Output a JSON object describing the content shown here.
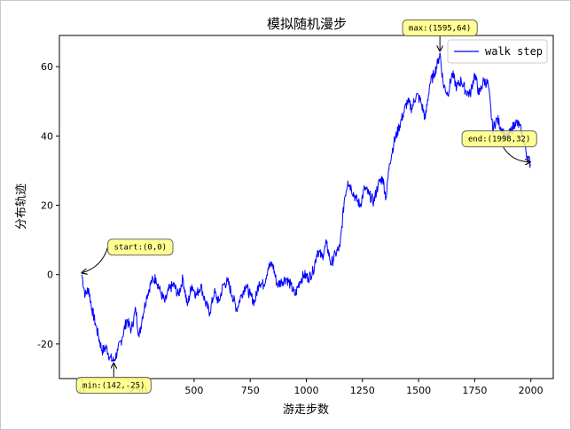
{
  "chart_data": {
    "type": "line",
    "title": "模拟随机漫步",
    "xlabel": "游走步数",
    "ylabel": "分布轨迹",
    "xlim": [
      -100,
      2100
    ],
    "ylim": [
      -30,
      69
    ],
    "xticks": [
      0,
      250,
      500,
      750,
      1000,
      1250,
      1500,
      1750,
      2000
    ],
    "yticks": [
      -20,
      0,
      20,
      40,
      60
    ],
    "grid": false,
    "legend_position": "top-right",
    "colors": {
      "line": "#0000ff",
      "annotation_fill": "#ffff7f",
      "annotation_edge": "#666666"
    },
    "series": [
      {
        "name": "walk step",
        "x": [
          0,
          15,
          30,
          45,
          60,
          75,
          90,
          110,
          125,
          142,
          160,
          180,
          200,
          220,
          240,
          255,
          270,
          290,
          310,
          330,
          350,
          370,
          390,
          410,
          430,
          450,
          470,
          490,
          510,
          530,
          550,
          570,
          590,
          610,
          630,
          650,
          670,
          690,
          710,
          730,
          750,
          770,
          790,
          810,
          830,
          850,
          870,
          890,
          910,
          930,
          950,
          970,
          990,
          1010,
          1030,
          1050,
          1070,
          1090,
          1110,
          1130,
          1150,
          1170,
          1185,
          1200,
          1220,
          1240,
          1260,
          1280,
          1300,
          1320,
          1340,
          1355,
          1370,
          1390,
          1410,
          1430,
          1450,
          1470,
          1490,
          1510,
          1530,
          1550,
          1570,
          1585,
          1595,
          1610,
          1630,
          1650,
          1670,
          1690,
          1710,
          1730,
          1750,
          1770,
          1790,
          1810,
          1830,
          1850,
          1870,
          1890,
          1910,
          1930,
          1950,
          1970,
          1985,
          1998
        ],
        "y": [
          0,
          -6,
          -4,
          -10,
          -14,
          -18,
          -22,
          -21,
          -24,
          -25,
          -22,
          -18,
          -13,
          -16,
          -10,
          -18,
          -12,
          -6,
          -2,
          -1,
          -5,
          -8,
          -4,
          -3,
          -6,
          -1,
          -9,
          -3,
          -6,
          -3,
          -8,
          -11,
          -5,
          -8,
          -3,
          -2,
          -6,
          -10,
          -6,
          -3,
          -6,
          -8,
          -2,
          -3,
          2,
          3,
          -3,
          -2,
          -1,
          -3,
          -6,
          -2,
          0,
          -1,
          1,
          7,
          5,
          9,
          3,
          6,
          8,
          22,
          27,
          25,
          22,
          20,
          25,
          23,
          21,
          26,
          28,
          22,
          32,
          38,
          42,
          46,
          50,
          48,
          52,
          50,
          45,
          55,
          58,
          61,
          64,
          55,
          52,
          58,
          54,
          56,
          53,
          52,
          58,
          52,
          56,
          55,
          42,
          45,
          42,
          39,
          41,
          44,
          43,
          38,
          34,
          32
        ]
      }
    ],
    "annotations": [
      {
        "text": "start:(0,0)",
        "x": 0,
        "y": 0
      },
      {
        "text": "max:(1595,64)",
        "x": 1595,
        "y": 64
      },
      {
        "text": "min:(142,-25)",
        "x": 142,
        "y": -25
      },
      {
        "text": "end:(1998,32)",
        "x": 1998,
        "y": 32
      }
    ]
  }
}
